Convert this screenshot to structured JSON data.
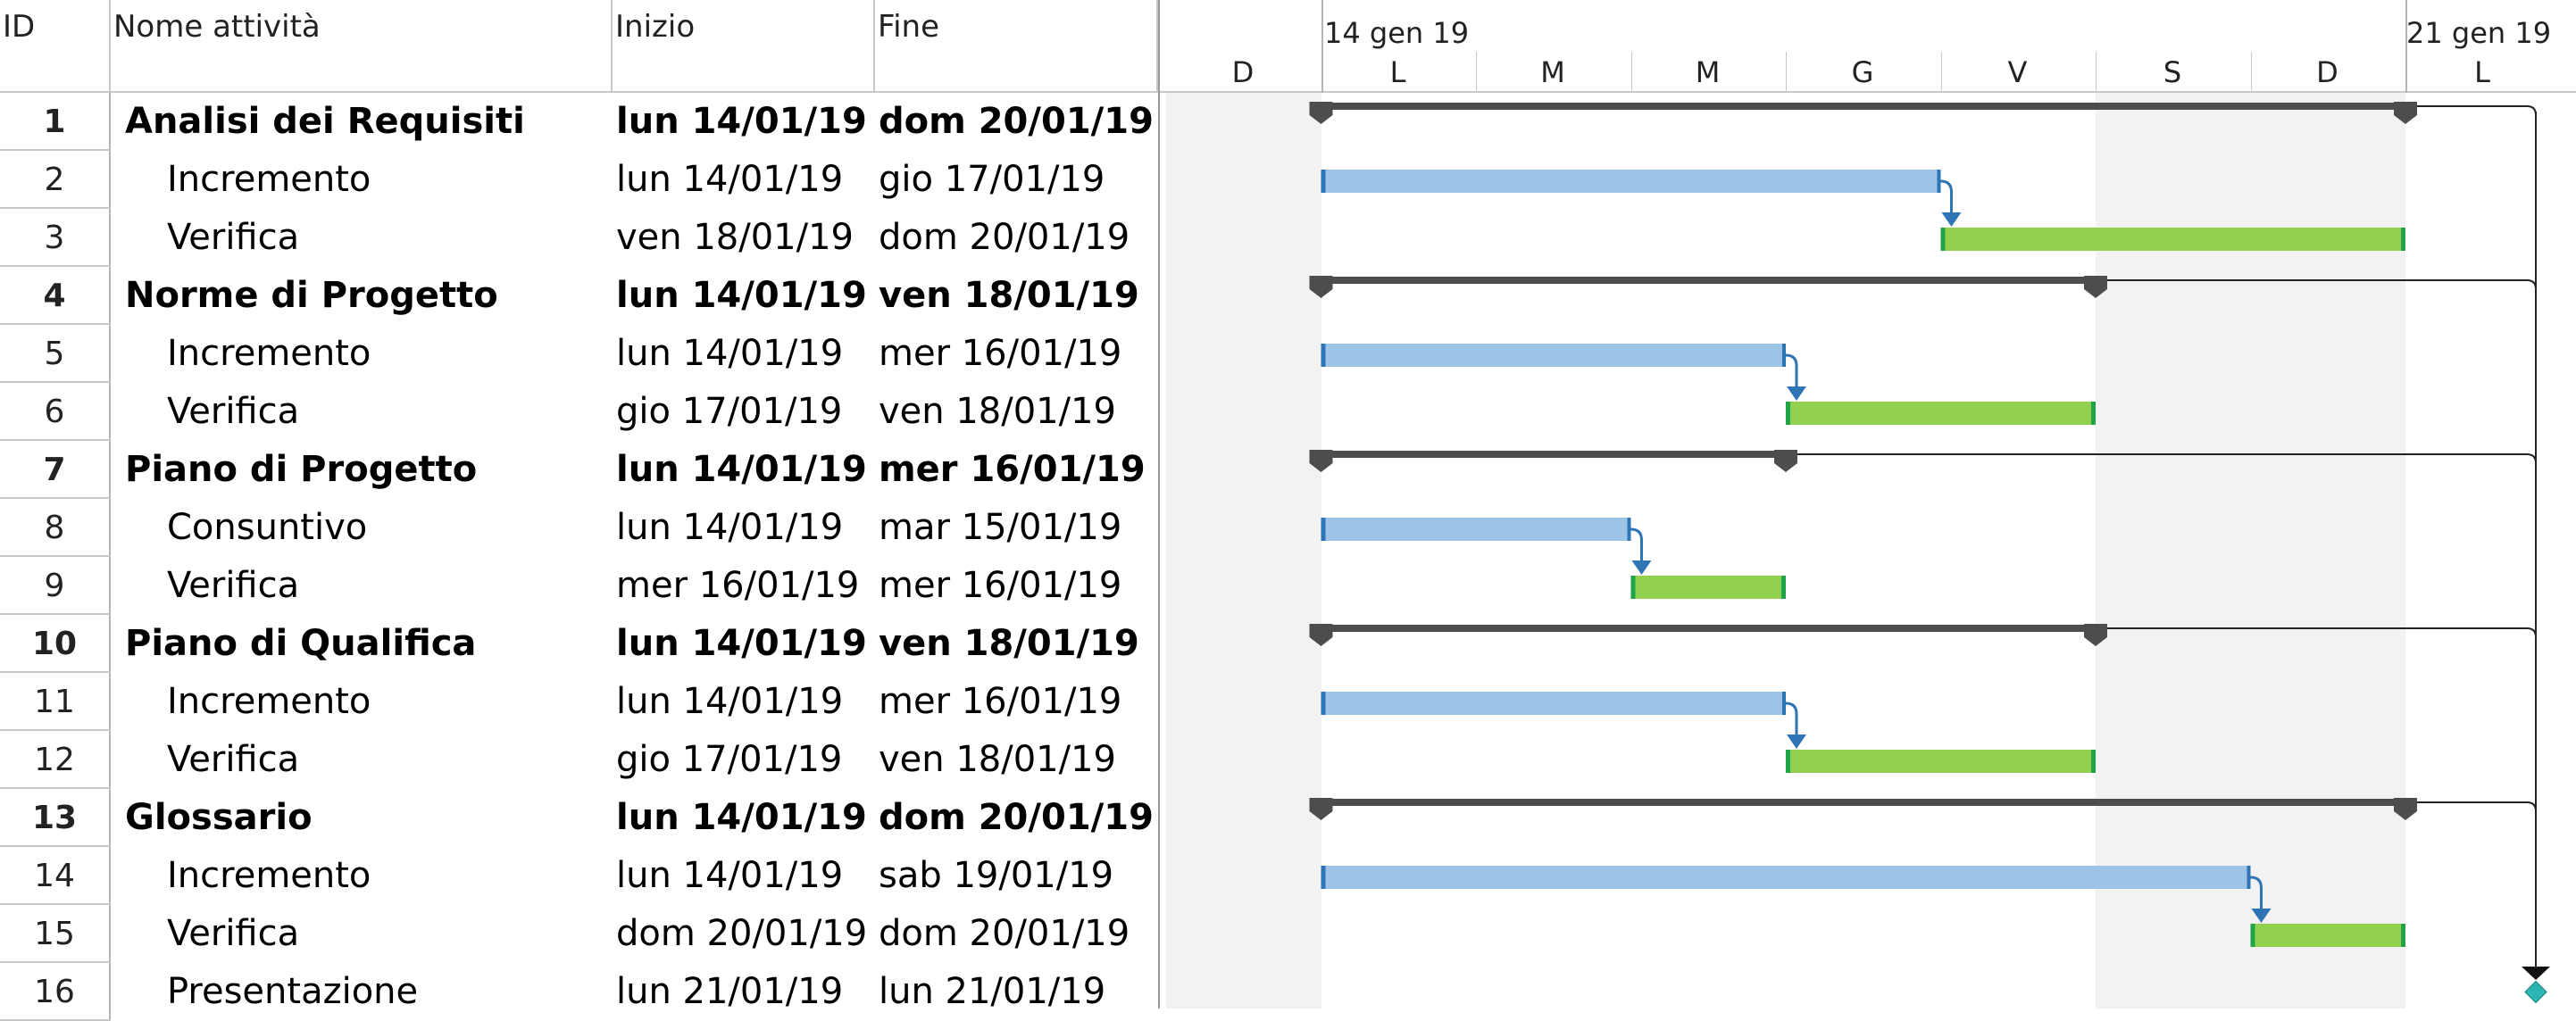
{
  "columns": {
    "id": "ID",
    "name": "Nome attività",
    "start": "Inizio",
    "end": "Fine"
  },
  "timescale": {
    "weeks": [
      "14 gen 19",
      "21 gen 19"
    ],
    "days": [
      "D",
      "L",
      "M",
      "M",
      "G",
      "V",
      "S",
      "D",
      "L"
    ]
  },
  "tasks": [
    {
      "id": "1",
      "name": "Analisi dei Requisiti",
      "start": "lun 14/01/19",
      "end": "dom 20/01/19",
      "summary": true
    },
    {
      "id": "2",
      "name": "Incremento",
      "start": "lun 14/01/19",
      "end": "gio 17/01/19",
      "summary": false
    },
    {
      "id": "3",
      "name": "Verifica",
      "start": "ven 18/01/19",
      "end": "dom 20/01/19",
      "summary": false
    },
    {
      "id": "4",
      "name": "Norme di Progetto",
      "start": "lun 14/01/19",
      "end": "ven 18/01/19",
      "summary": true
    },
    {
      "id": "5",
      "name": "Incremento",
      "start": "lun 14/01/19",
      "end": "mer 16/01/19",
      "summary": false
    },
    {
      "id": "6",
      "name": "Verifica",
      "start": "gio 17/01/19",
      "end": "ven 18/01/19",
      "summary": false
    },
    {
      "id": "7",
      "name": "Piano di Progetto",
      "start": "lun 14/01/19",
      "end": "mer 16/01/19",
      "summary": true
    },
    {
      "id": "8",
      "name": "Consuntivo",
      "start": "lun 14/01/19",
      "end": "mar 15/01/19",
      "summary": false
    },
    {
      "id": "9",
      "name": "Verifica",
      "start": "mer 16/01/19",
      "end": "mer 16/01/19",
      "summary": false
    },
    {
      "id": "10",
      "name": "Piano di Qualifica",
      "start": "lun 14/01/19",
      "end": "ven 18/01/19",
      "summary": true
    },
    {
      "id": "11",
      "name": "Incremento",
      "start": "lun 14/01/19",
      "end": "mer 16/01/19",
      "summary": false
    },
    {
      "id": "12",
      "name": "Verifica",
      "start": "gio 17/01/19",
      "end": "ven 18/01/19",
      "summary": false
    },
    {
      "id": "13",
      "name": "Glossario",
      "start": "lun 14/01/19",
      "end": "dom 20/01/19",
      "summary": true
    },
    {
      "id": "14",
      "name": "Incremento",
      "start": "lun 14/01/19",
      "end": "sab 19/01/19",
      "summary": false
    },
    {
      "id": "15",
      "name": "Verifica",
      "start": "dom 20/01/19",
      "end": "dom 20/01/19",
      "summary": false
    },
    {
      "id": "16",
      "name": "Presentazione",
      "start": "lun 21/01/19",
      "end": "lun 21/01/19",
      "summary": false,
      "milestone": true
    }
  ],
  "colors": {
    "increment_bar": "#9dc3e6",
    "increment_cap": "#2e75b6",
    "verify_bar": "#92d050",
    "verify_cap": "#21a34a",
    "summary_bar": "#4d4d4d",
    "link_arrow": "#2e75b6",
    "milestone": "#2cb5b5",
    "weekend_shade": "#f2f2f2"
  }
}
